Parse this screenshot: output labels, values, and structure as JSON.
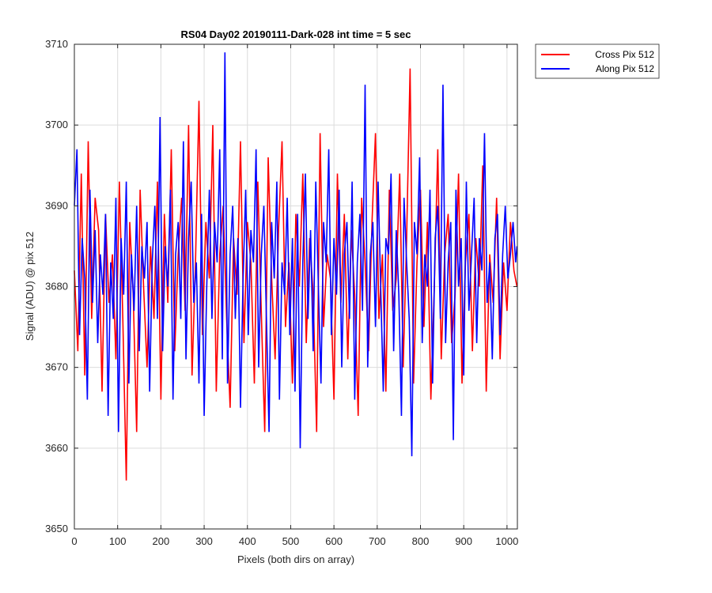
{
  "chart_data": {
    "type": "line",
    "title": "RS04 Day02 20190111-Dark-028 int time = 5 sec",
    "xlabel": "Pixels (both dirs on array)",
    "ylabel": "Signal (ADU) @ pix 512",
    "xlim": [
      0,
      1024
    ],
    "ylim": [
      3650,
      3710
    ],
    "xticks": [
      0,
      100,
      200,
      300,
      400,
      500,
      600,
      700,
      800,
      900,
      1000
    ],
    "yticks": [
      3650,
      3660,
      3670,
      3680,
      3690,
      3700,
      3710
    ],
    "grid": true,
    "legend_position": "outside-top-right",
    "series": [
      {
        "name": "Cross Pix 512",
        "color": "#ff0000",
        "x": [
          0,
          8,
          16,
          24,
          32,
          40,
          48,
          56,
          64,
          72,
          80,
          88,
          96,
          104,
          112,
          120,
          128,
          136,
          144,
          152,
          160,
          168,
          176,
          184,
          192,
          200,
          208,
          216,
          224,
          232,
          240,
          248,
          256,
          264,
          272,
          280,
          288,
          296,
          304,
          312,
          320,
          328,
          336,
          344,
          352,
          360,
          368,
          376,
          384,
          392,
          400,
          408,
          416,
          424,
          432,
          440,
          448,
          456,
          464,
          472,
          480,
          488,
          496,
          504,
          512,
          520,
          528,
          536,
          544,
          552,
          560,
          568,
          576,
          584,
          592,
          600,
          608,
          616,
          624,
          632,
          640,
          648,
          656,
          664,
          672,
          680,
          688,
          696,
          704,
          712,
          720,
          728,
          736,
          744,
          752,
          760,
          768,
          776,
          784,
          792,
          800,
          808,
          816,
          824,
          832,
          840,
          848,
          856,
          864,
          872,
          880,
          888,
          896,
          904,
          912,
          920,
          928,
          936,
          944,
          952,
          960,
          968,
          976,
          984,
          992,
          1000,
          1008,
          1016,
          1023
        ],
        "y": [
          3682,
          3672,
          3694,
          3669,
          3698,
          3676,
          3691,
          3687,
          3667,
          3689,
          3678,
          3684,
          3671,
          3693,
          3676,
          3656,
          3688,
          3679,
          3662,
          3692,
          3680,
          3670,
          3685,
          3676,
          3693,
          3666,
          3689,
          3678,
          3697,
          3672,
          3684,
          3691,
          3677,
          3700,
          3669,
          3683,
          3703,
          3674,
          3688,
          3681,
          3700,
          3667,
          3684,
          3690,
          3676,
          3665,
          3686,
          3679,
          3698,
          3673,
          3688,
          3683,
          3668,
          3693,
          3677,
          3662,
          3696,
          3681,
          3671,
          3687,
          3698,
          3675,
          3683,
          3668,
          3689,
          3680,
          3694,
          3673,
          3686,
          3679,
          3662,
          3699,
          3675,
          3684,
          3681,
          3666,
          3694,
          3678,
          3689,
          3671,
          3687,
          3679,
          3664,
          3691,
          3683,
          3672,
          3688,
          3699,
          3676,
          3684,
          3667,
          3692,
          3677,
          3681,
          3694,
          3670,
          3686,
          3707,
          3668,
          3683,
          3692,
          3675,
          3688,
          3666,
          3680,
          3697,
          3671,
          3684,
          3689,
          3673,
          3679,
          3694,
          3668,
          3683,
          3689,
          3672,
          3686,
          3680,
          3695,
          3667,
          3684,
          3678,
          3691,
          3671,
          3683,
          3677,
          3688,
          3682,
          3680
        ]
      },
      {
        "name": "Along Pix 512",
        "color": "#0000ff",
        "x": [
          0,
          6,
          12,
          18,
          24,
          30,
          36,
          42,
          48,
          54,
          60,
          66,
          72,
          78,
          84,
          90,
          96,
          102,
          108,
          114,
          120,
          126,
          132,
          138,
          144,
          150,
          156,
          162,
          168,
          174,
          180,
          186,
          192,
          198,
          204,
          210,
          216,
          222,
          228,
          234,
          240,
          246,
          252,
          258,
          264,
          270,
          276,
          282,
          288,
          294,
          300,
          306,
          312,
          318,
          324,
          330,
          336,
          342,
          348,
          354,
          360,
          366,
          372,
          378,
          384,
          390,
          396,
          402,
          408,
          414,
          420,
          426,
          432,
          438,
          444,
          450,
          456,
          462,
          468,
          474,
          480,
          486,
          492,
          498,
          504,
          510,
          516,
          522,
          528,
          534,
          540,
          546,
          552,
          558,
          564,
          570,
          576,
          582,
          588,
          594,
          600,
          606,
          612,
          618,
          624,
          630,
          636,
          642,
          648,
          654,
          660,
          666,
          672,
          678,
          684,
          690,
          696,
          702,
          708,
          714,
          720,
          726,
          732,
          738,
          744,
          750,
          756,
          762,
          768,
          774,
          780,
          786,
          792,
          798,
          804,
          810,
          816,
          822,
          828,
          834,
          840,
          846,
          852,
          858,
          864,
          870,
          876,
          882,
          888,
          894,
          900,
          906,
          912,
          918,
          924,
          930,
          936,
          942,
          948,
          954,
          960,
          966,
          972,
          978,
          984,
          990,
          996,
          1002,
          1008,
          1014,
          1020,
          1023
        ],
        "y": [
          3690,
          3697,
          3674,
          3686,
          3681,
          3666,
          3692,
          3678,
          3687,
          3673,
          3684,
          3679,
          3689,
          3664,
          3683,
          3676,
          3691,
          3662,
          3686,
          3679,
          3693,
          3668,
          3684,
          3677,
          3690,
          3672,
          3685,
          3681,
          3688,
          3667,
          3683,
          3690,
          3676,
          3701,
          3672,
          3685,
          3680,
          3692,
          3666,
          3684,
          3688,
          3676,
          3698,
          3671,
          3686,
          3693,
          3678,
          3683,
          3668,
          3689,
          3664,
          3680,
          3692,
          3676,
          3688,
          3683,
          3697,
          3671,
          3709,
          3668,
          3684,
          3690,
          3676,
          3686,
          3665,
          3681,
          3692,
          3674,
          3687,
          3683,
          3697,
          3670,
          3684,
          3690,
          3676,
          3662,
          3688,
          3681,
          3693,
          3666,
          3683,
          3679,
          3691,
          3674,
          3686,
          3667,
          3689,
          3660,
          3683,
          3694,
          3676,
          3687,
          3672,
          3693,
          3680,
          3668,
          3688,
          3683,
          3697,
          3674,
          3686,
          3679,
          3692,
          3670,
          3684,
          3688,
          3676,
          3693,
          3666,
          3683,
          3689,
          3677,
          3705,
          3670,
          3684,
          3688,
          3675,
          3693,
          3680,
          3667,
          3686,
          3684,
          3694,
          3672,
          3687,
          3679,
          3664,
          3691,
          3683,
          3676,
          3659,
          3688,
          3684,
          3696,
          3673,
          3684,
          3680,
          3692,
          3668,
          3686,
          3690,
          3676,
          3705,
          3673,
          3683,
          3688,
          3661,
          3692,
          3680,
          3686,
          3669,
          3693,
          3677,
          3684,
          3691,
          3673,
          3686,
          3682,
          3699,
          3678,
          3683,
          3671,
          3686,
          3689,
          3674,
          3684,
          3690,
          3681,
          3684,
          3688,
          3683,
          3685
        ]
      }
    ]
  }
}
